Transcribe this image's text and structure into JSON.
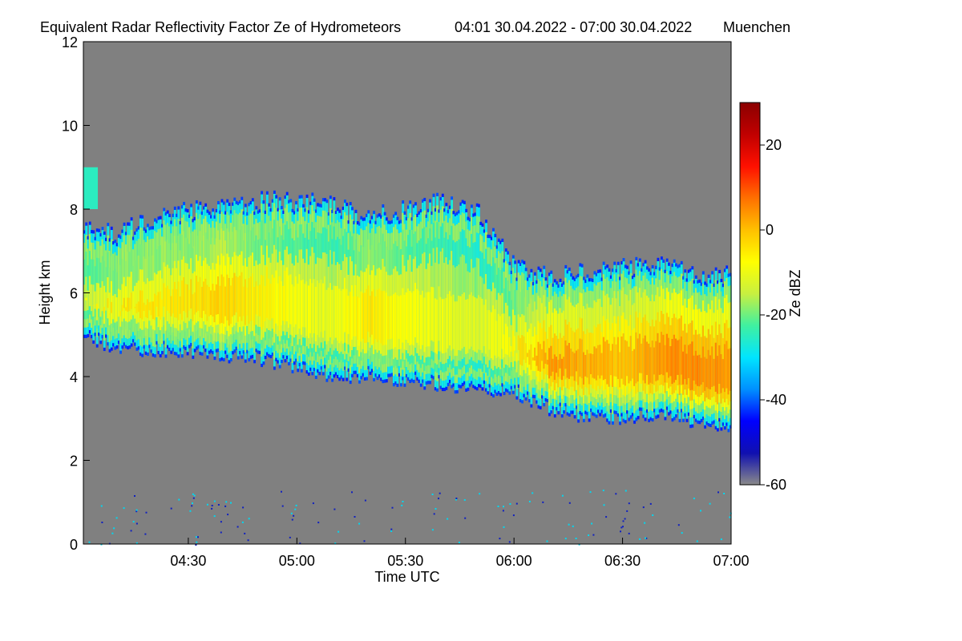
{
  "chart_data": {
    "type": "heatmap",
    "title": "Equivalent Radar Reflectivity Factor Ze of Hydrometeors",
    "time_range": "04:01 30.04.2022 - 07:00 30.04.2022",
    "location": "Muenchen",
    "xlabel": "Time UTC",
    "ylabel": "Height km",
    "x_range_minutes": [
      241,
      420
    ],
    "ylim": [
      0,
      12
    ],
    "x_ticks": [
      {
        "label": "04:30",
        "minute": 270
      },
      {
        "label": "05:00",
        "minute": 300
      },
      {
        "label": "05:30",
        "minute": 330
      },
      {
        "label": "06:00",
        "minute": 360
      },
      {
        "label": "06:30",
        "minute": 390
      },
      {
        "label": "07:00",
        "minute": 420
      }
    ],
    "y_ticks": [
      0,
      2,
      4,
      6,
      8,
      10,
      12
    ],
    "colorbar": {
      "label": "Ze dBZ",
      "range": [
        -60,
        30
      ],
      "ticks": [
        -60,
        -40,
        -20,
        0,
        20
      ],
      "colors": [
        "#8a8a8a",
        "#1010b0",
        "#0000ff",
        "#0090ff",
        "#00e5ff",
        "#40f0a0",
        "#c8f040",
        "#ffff00",
        "#ffc000",
        "#ff7000",
        "#ff1000",
        "#c00000",
        "#8b0000"
      ]
    },
    "background_color": "#808080",
    "cloud_layer": {
      "minutes": [
        241,
        250,
        260,
        270,
        280,
        290,
        300,
        310,
        320,
        330,
        340,
        350,
        360,
        370,
        380,
        390,
        400,
        410,
        420
      ],
      "top_km": [
        7.5,
        7.4,
        7.8,
        8.0,
        8.1,
        8.2,
        8.2,
        8.1,
        7.8,
        8.0,
        8.2,
        7.9,
        6.6,
        6.4,
        6.5,
        6.6,
        6.7,
        6.5,
        6.4
      ],
      "base_km": [
        4.9,
        4.7,
        4.6,
        4.6,
        4.5,
        4.4,
        4.2,
        4.0,
        4.0,
        3.9,
        3.8,
        3.7,
        3.6,
        3.2,
        3.0,
        3.0,
        3.1,
        2.9,
        2.8
      ],
      "core_dbz_estimate": [
        -8,
        -4,
        -4,
        -4,
        -2,
        -6,
        -8,
        -10,
        -4,
        -8,
        -10,
        -12,
        -6,
        4,
        2,
        0,
        4,
        6,
        4
      ]
    },
    "upper_cloud_patch": {
      "minute_start": 241,
      "minute_end": 245,
      "bottom_km": 8.0,
      "top_km": 9.0,
      "dbz_estimate": -25
    }
  }
}
